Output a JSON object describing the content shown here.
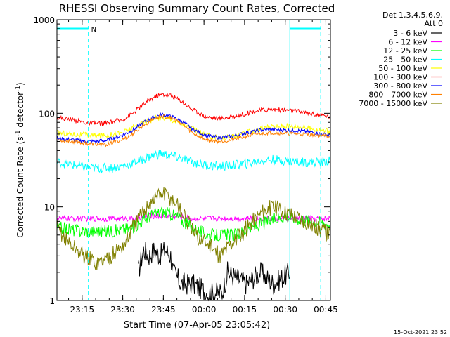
{
  "chart_data": {
    "type": "line",
    "title": "RHESSI Observing Summary Count Rates, Corrected",
    "xlabel": "Start Time (07-Apr-05 23:05:42)",
    "ylabel": "Corrected Count Rate (s⁻¹ detector⁻¹)",
    "ylabel_parts": {
      "main": "Corrected Count Rate (s",
      "exp1": "-1",
      "mid": " detector",
      "exp2": "-1",
      "end": ")"
    },
    "yscale": "log",
    "ylim": [
      1,
      1000
    ],
    "xlim_minutes": [
      0,
      101
    ],
    "x_ticks": [
      {
        "label": "23:15",
        "t": 9.3
      },
      {
        "label": "23:30",
        "t": 24.3
      },
      {
        "label": "23:45",
        "t": 39.3
      },
      {
        "label": "00:00",
        "t": 54.3
      },
      {
        "label": "00:15",
        "t": 69.3
      },
      {
        "label": "00:30",
        "t": 84.3
      },
      {
        "label": "00:45",
        "t": 99.3
      }
    ],
    "y_ticks": [
      {
        "label": "1",
        "v": 1
      },
      {
        "label": "10",
        "v": 10
      },
      {
        "label": "100",
        "v": 100
      },
      {
        "label": "1000",
        "v": 1000
      }
    ],
    "legend_header": [
      "Det 1,3,4,5,6,9,",
      "Att 0"
    ],
    "series": [
      {
        "name": "3 - 6 keV",
        "color": "#000000",
        "points": [
          [
            30,
            2
          ],
          [
            32,
            3.5
          ],
          [
            34,
            3
          ],
          [
            36,
            3.5
          ],
          [
            38,
            3
          ],
          [
            40,
            3.5
          ],
          [
            42,
            3
          ],
          [
            43,
            2
          ],
          [
            46,
            1.5
          ],
          [
            50,
            1.5
          ],
          [
            56,
            1.2
          ],
          [
            61,
            1.2
          ],
          [
            63,
            2
          ],
          [
            70,
            1.5
          ],
          [
            75,
            2
          ],
          [
            80,
            1.5
          ],
          [
            86,
            2
          ]
        ]
      },
      {
        "name": "6 - 12 keV",
        "color": "#ff00ff",
        "points": [
          [
            0,
            7.5
          ],
          [
            10,
            7.5
          ],
          [
            20,
            7.5
          ],
          [
            28,
            7.5
          ],
          [
            34,
            8
          ],
          [
            39,
            8
          ],
          [
            44,
            8
          ],
          [
            50,
            7.5
          ],
          [
            60,
            7.5
          ],
          [
            70,
            7.5
          ],
          [
            80,
            7.5
          ],
          [
            90,
            7.5
          ],
          [
            101,
            7.5
          ]
        ]
      },
      {
        "name": "12 - 25 keV",
        "color": "#00ff00",
        "points": [
          [
            0,
            6
          ],
          [
            10,
            5.5
          ],
          [
            20,
            5.5
          ],
          [
            28,
            6
          ],
          [
            34,
            8
          ],
          [
            39,
            9
          ],
          [
            44,
            8
          ],
          [
            50,
            6
          ],
          [
            56,
            5
          ],
          [
            60,
            5
          ],
          [
            66,
            5
          ],
          [
            72,
            6
          ],
          [
            78,
            7
          ],
          [
            84,
            8
          ],
          [
            90,
            7.5
          ],
          [
            101,
            6.5
          ]
        ]
      },
      {
        "name": "25 - 50 keV",
        "color": "#00ffff",
        "points": [
          [
            0,
            30
          ],
          [
            6,
            28
          ],
          [
            12,
            26
          ],
          [
            20,
            26
          ],
          [
            26,
            28
          ],
          [
            30,
            31
          ],
          [
            34,
            34
          ],
          [
            36,
            36
          ],
          [
            39,
            37
          ],
          [
            42,
            35
          ],
          [
            46,
            33
          ],
          [
            50,
            30
          ],
          [
            55,
            28
          ],
          [
            60,
            27
          ],
          [
            65,
            28
          ],
          [
            70,
            29
          ],
          [
            75,
            31
          ],
          [
            80,
            32
          ],
          [
            85,
            31
          ],
          [
            90,
            30
          ],
          [
            95,
            30
          ],
          [
            101,
            31
          ]
        ]
      },
      {
        "name": "50 - 100 keV",
        "color": "#ffff00",
        "points": [
          [
            0,
            62
          ],
          [
            6,
            60
          ],
          [
            12,
            58
          ],
          [
            18,
            58
          ],
          [
            24,
            62
          ],
          [
            28,
            70
          ],
          [
            32,
            80
          ],
          [
            36,
            88
          ],
          [
            39,
            90
          ],
          [
            42,
            86
          ],
          [
            46,
            78
          ],
          [
            50,
            68
          ],
          [
            55,
            58
          ],
          [
            60,
            55
          ],
          [
            65,
            56
          ],
          [
            70,
            62
          ],
          [
            75,
            68
          ],
          [
            80,
            72
          ],
          [
            85,
            73
          ],
          [
            90,
            72
          ],
          [
            95,
            68
          ],
          [
            101,
            64
          ]
        ]
      },
      {
        "name": "100 - 300 keV",
        "color": "#ff0000",
        "points": [
          [
            0,
            90
          ],
          [
            6,
            85
          ],
          [
            12,
            78
          ],
          [
            18,
            78
          ],
          [
            24,
            85
          ],
          [
            28,
            100
          ],
          [
            32,
            125
          ],
          [
            36,
            150
          ],
          [
            39,
            160
          ],
          [
            42,
            155
          ],
          [
            46,
            135
          ],
          [
            50,
            110
          ],
          [
            55,
            92
          ],
          [
            60,
            88
          ],
          [
            65,
            92
          ],
          [
            70,
            100
          ],
          [
            75,
            108
          ],
          [
            80,
            110
          ],
          [
            85,
            108
          ],
          [
            90,
            104
          ],
          [
            95,
            98
          ],
          [
            101,
            92
          ]
        ]
      },
      {
        "name": "300 - 800 keV",
        "color": "#0000ff",
        "points": [
          [
            0,
            54
          ],
          [
            6,
            52
          ],
          [
            12,
            50
          ],
          [
            18,
            51
          ],
          [
            24,
            58
          ],
          [
            28,
            66
          ],
          [
            32,
            80
          ],
          [
            36,
            92
          ],
          [
            39,
            97
          ],
          [
            42,
            93
          ],
          [
            46,
            83
          ],
          [
            50,
            68
          ],
          [
            55,
            58
          ],
          [
            60,
            55
          ],
          [
            65,
            57
          ],
          [
            70,
            62
          ],
          [
            75,
            66
          ],
          [
            80,
            67
          ],
          [
            85,
            66
          ],
          [
            90,
            65
          ],
          [
            95,
            62
          ],
          [
            101,
            58
          ]
        ]
      },
      {
        "name": "800 - 7000 keV",
        "color": "#ff8000",
        "points": [
          [
            0,
            52
          ],
          [
            6,
            50
          ],
          [
            12,
            47
          ],
          [
            18,
            46
          ],
          [
            24,
            52
          ],
          [
            28,
            60
          ],
          [
            32,
            75
          ],
          [
            36,
            88
          ],
          [
            39,
            93
          ],
          [
            42,
            90
          ],
          [
            46,
            78
          ],
          [
            50,
            62
          ],
          [
            55,
            52
          ],
          [
            60,
            50
          ],
          [
            65,
            52
          ],
          [
            70,
            57
          ],
          [
            75,
            61
          ],
          [
            80,
            62
          ],
          [
            85,
            61
          ],
          [
            90,
            60
          ],
          [
            95,
            59
          ],
          [
            101,
            57
          ]
        ]
      },
      {
        "name": "7000 - 15000 keV",
        "color": "#808000",
        "points": [
          [
            0,
            6
          ],
          [
            5,
            4
          ],
          [
            10,
            3
          ],
          [
            15,
            2.5
          ],
          [
            20,
            3
          ],
          [
            25,
            4
          ],
          [
            28,
            6
          ],
          [
            31,
            8
          ],
          [
            34,
            11
          ],
          [
            37,
            13
          ],
          [
            39,
            14
          ],
          [
            41,
            13
          ],
          [
            44,
            11
          ],
          [
            47,
            8
          ],
          [
            51,
            5
          ],
          [
            56,
            4
          ],
          [
            60,
            3
          ],
          [
            64,
            4
          ],
          [
            68,
            5
          ],
          [
            72,
            7
          ],
          [
            76,
            9
          ],
          [
            80,
            10
          ],
          [
            84,
            9
          ],
          [
            88,
            8
          ],
          [
            92,
            7
          ],
          [
            96,
            6
          ],
          [
            101,
            5
          ]
        ]
      }
    ],
    "vertical_markers": [
      {
        "t": 0,
        "style": "solid"
      },
      {
        "t": 11.6,
        "style": "dashed"
      },
      {
        "t": 86.0,
        "style": "solid"
      },
      {
        "t": 97.4,
        "style": "dashed"
      }
    ],
    "flag_segments": [
      [
        0,
        11.6
      ],
      [
        86.0,
        97.4
      ]
    ],
    "flag_label": "N",
    "flag_value": 800,
    "footer_timestamp": "15-Oct-2021 23:52"
  }
}
